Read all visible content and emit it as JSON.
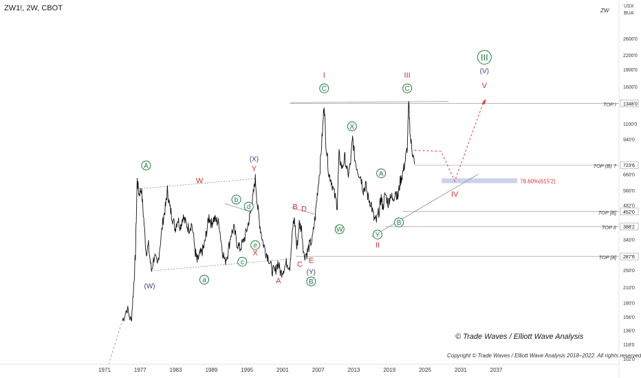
{
  "header": {
    "title": "ZW1!, 2W, CBOT",
    "symbol": "ZW"
  },
  "price_axis_units": [
    "USX",
    "BUA"
  ],
  "watermark": "© Trade Waves / Elliott Wave Analysis",
  "copyright": "Copyright © Trade Waves / Elliott Wave Analysis 2018–2022. All rights reserved.",
  "colors": {
    "green": "#1e7a3c",
    "red": "#d32f2f",
    "navy": "#3f3f6e",
    "price": "#111111",
    "level": "#8a8a8a"
  },
  "chart_data": {
    "type": "line",
    "title": "ZW1!, 2W, CBOT",
    "y_scale": "log",
    "x_ticks": [
      "1971",
      "1977",
      "1983",
      "1989",
      "1995",
      "2001",
      "2007",
      "2013",
      "2019",
      "2025",
      "2031",
      "2037"
    ],
    "y_ticks": [
      "2600'0",
      "2200'0",
      "1900'0",
      "1600'0",
      "1100'0",
      "940'0",
      "660'0",
      "560'0",
      "482'0",
      "340'0",
      "250'0",
      "210'0",
      "180'0",
      "156'0",
      "136'0",
      "118'0",
      "102'0"
    ],
    "price_badges": [
      "1348'0",
      "723'6",
      "452'0",
      "388'2",
      "287'6"
    ],
    "series": [
      {
        "values": [
          [
            1974.0,
            150
          ],
          [
            1974.8,
            170
          ],
          [
            1975.5,
            148
          ],
          [
            1975.9,
            210
          ],
          [
            1976.2,
            290
          ],
          [
            1976.5,
            620
          ],
          [
            1976.8,
            540
          ],
          [
            1977.2,
            570
          ],
          [
            1977.6,
            420
          ],
          [
            1978.0,
            300
          ],
          [
            1978.4,
            320
          ],
          [
            1978.9,
            248
          ],
          [
            1979.4,
            290
          ],
          [
            1979.9,
            260
          ],
          [
            1980.4,
            330
          ],
          [
            1980.9,
            420
          ],
          [
            1981.3,
            480
          ],
          [
            1981.6,
            560
          ],
          [
            1982.0,
            470
          ],
          [
            1982.4,
            430
          ],
          [
            1982.9,
            380
          ],
          [
            1983.3,
            420
          ],
          [
            1983.8,
            390
          ],
          [
            1984.2,
            430
          ],
          [
            1984.7,
            400
          ],
          [
            1985.2,
            380
          ],
          [
            1985.7,
            400
          ],
          [
            1986.3,
            300
          ],
          [
            1986.6,
            272
          ],
          [
            1987.0,
            290
          ],
          [
            1987.4,
            300
          ],
          [
            1987.8,
            320
          ],
          [
            1988.2,
            370
          ],
          [
            1988.6,
            430
          ],
          [
            1989.0,
            400
          ],
          [
            1989.4,
            420
          ],
          [
            1989.9,
            410
          ],
          [
            1990.3,
            400
          ],
          [
            1990.8,
            310
          ],
          [
            1991.3,
            272
          ],
          [
            1991.8,
            300
          ],
          [
            1992.3,
            360
          ],
          [
            1992.8,
            380
          ],
          [
            1993.3,
            330
          ],
          [
            1993.8,
            310
          ],
          [
            1994.3,
            330
          ],
          [
            1994.8,
            360
          ],
          [
            1995.3,
            410
          ],
          [
            1995.7,
            460
          ],
          [
            1996.0,
            520
          ],
          [
            1996.4,
            630
          ],
          [
            1996.8,
            470
          ],
          [
            1997.2,
            390
          ],
          [
            1997.7,
            330
          ],
          [
            1998.2,
            300
          ],
          [
            1998.7,
            280
          ],
          [
            1999.2,
            250
          ],
          [
            1999.7,
            245
          ],
          [
            2000.2,
            270
          ],
          [
            2000.7,
            242
          ],
          [
            2001.2,
            255
          ],
          [
            2001.7,
            270
          ],
          [
            2002.2,
            260
          ],
          [
            2002.7,
            380
          ],
          [
            2003.0,
            420
          ],
          [
            2003.4,
            310
          ],
          [
            2003.8,
            400
          ],
          [
            2004.2,
            380
          ],
          [
            2004.6,
            290
          ],
          [
            2005.1,
            296
          ],
          [
            2005.5,
            320
          ],
          [
            2006.0,
            340
          ],
          [
            2006.5,
            430
          ],
          [
            2006.9,
            560
          ],
          [
            2007.3,
            700
          ],
          [
            2007.7,
            1000
          ],
          [
            2008.0,
            1348
          ],
          [
            2008.3,
            900
          ],
          [
            2008.8,
            660
          ],
          [
            2009.2,
            620
          ],
          [
            2009.7,
            540
          ],
          [
            2010.2,
            480
          ],
          [
            2010.5,
            800
          ],
          [
            2011.0,
            700
          ],
          [
            2011.5,
            780
          ],
          [
            2012.0,
            650
          ],
          [
            2012.4,
            720
          ],
          [
            2012.8,
            950
          ],
          [
            2013.2,
            760
          ],
          [
            2013.7,
            680
          ],
          [
            2014.2,
            640
          ],
          [
            2014.6,
            560
          ],
          [
            2015.0,
            590
          ],
          [
            2015.4,
            520
          ],
          [
            2015.9,
            490
          ],
          [
            2016.4,
            420
          ],
          [
            2016.8,
            410
          ],
          [
            2017.3,
            460
          ],
          [
            2017.6,
            520
          ],
          [
            2017.9,
            470
          ],
          [
            2018.3,
            540
          ],
          [
            2018.8,
            490
          ],
          [
            2019.2,
            540
          ],
          [
            2019.6,
            500
          ],
          [
            2020.0,
            560
          ],
          [
            2020.4,
            520
          ],
          [
            2020.8,
            610
          ],
          [
            2021.2,
            660
          ],
          [
            2021.6,
            740
          ],
          [
            2022.0,
            860
          ],
          [
            2022.25,
            1348
          ],
          [
            2022.55,
            940
          ],
          [
            2022.9,
            820
          ],
          [
            2023.2,
            730
          ]
        ]
      }
    ],
    "projection": [
      [
        2023.2,
        840
      ],
      [
        2027.7,
        830
      ],
      [
        2030.0,
        615
      ],
      [
        2035.0,
        1400
      ]
    ],
    "levels": [
      {
        "label": "TOP I",
        "value": 1348
      },
      {
        "label": "TOP (B) ?",
        "value": 723
      },
      {
        "label": "TOP [B]",
        "value": 452
      },
      {
        "label": "TOP II",
        "value": 388
      },
      {
        "label": "TOP [8]",
        "value": 287
      }
    ],
    "fib": {
      "label": "78.60%(615'2)",
      "value": 615
    },
    "wave_labels": [
      {
        "text": "A",
        "style": "green",
        "x": 1978.0,
        "y": 720
      },
      {
        "text": "W",
        "style": "red",
        "x": 1987.0,
        "y": 620
      },
      {
        "text": "(X)",
        "style": "navy",
        "x": 1996.2,
        "y": 770
      },
      {
        "text": "Y",
        "style": "red",
        "x": 1996.2,
        "y": 700
      },
      {
        "text": "I",
        "style": "red",
        "x": 2008.0,
        "y": 1800
      },
      {
        "text": "C",
        "style": "green",
        "x": 2008.0,
        "y": 1570
      },
      {
        "text": "III",
        "style": "red",
        "x": 2022.0,
        "y": 1800
      },
      {
        "text": "C",
        "style": "green",
        "x": 2022.0,
        "y": 1570
      },
      {
        "text": "III",
        "style": "green_circle",
        "x": 2035.0,
        "y": 2150
      },
      {
        "text": "(V)",
        "style": "navy",
        "x": 2035.0,
        "y": 1880
      },
      {
        "text": "V",
        "style": "red",
        "x": 2035.0,
        "y": 1620
      },
      {
        "text": "X",
        "style": "green",
        "x": 2012.7,
        "y": 1070
      },
      {
        "text": "A",
        "style": "green",
        "x": 2017.6,
        "y": 665
      },
      {
        "text": "b",
        "style": "green",
        "x": 1993.2,
        "y": 510
      },
      {
        "text": "d",
        "style": "green",
        "x": 1995.3,
        "y": 475
      },
      {
        "text": "B",
        "style": "red",
        "x": 2003.1,
        "y": 475
      },
      {
        "text": "D",
        "style": "red",
        "x": 2004.6,
        "y": 465
      },
      {
        "text": "W",
        "style": "green",
        "x": 2010.6,
        "y": 378
      },
      {
        "text": "B",
        "style": "green",
        "x": 2020.6,
        "y": 405
      },
      {
        "text": "Y",
        "style": "green",
        "x": 2017.0,
        "y": 358
      },
      {
        "text": "II",
        "style": "red",
        "x": 2017.0,
        "y": 323
      },
      {
        "text": "e",
        "style": "green",
        "x": 1996.4,
        "y": 322
      },
      {
        "text": "X",
        "style": "red",
        "x": 1996.4,
        "y": 298
      },
      {
        "text": "c",
        "style": "green",
        "x": 1994.2,
        "y": 272
      },
      {
        "text": "C",
        "style": "red",
        "x": 2003.9,
        "y": 266
      },
      {
        "text": "E",
        "style": "red",
        "x": 2005.8,
        "y": 276
      },
      {
        "text": "(Y)",
        "style": "navy",
        "x": 2005.8,
        "y": 246
      },
      {
        "text": "B",
        "style": "green",
        "x": 2005.8,
        "y": 223
      },
      {
        "text": "a",
        "style": "green",
        "x": 1987.8,
        "y": 227
      },
      {
        "text": "A",
        "style": "red",
        "x": 2000.3,
        "y": 225
      },
      {
        "text": "(W)",
        "style": "navy",
        "x": 1978.6,
        "y": 213
      },
      {
        "text": "IV",
        "style": "red",
        "x": 2030.0,
        "y": 540
      }
    ]
  }
}
